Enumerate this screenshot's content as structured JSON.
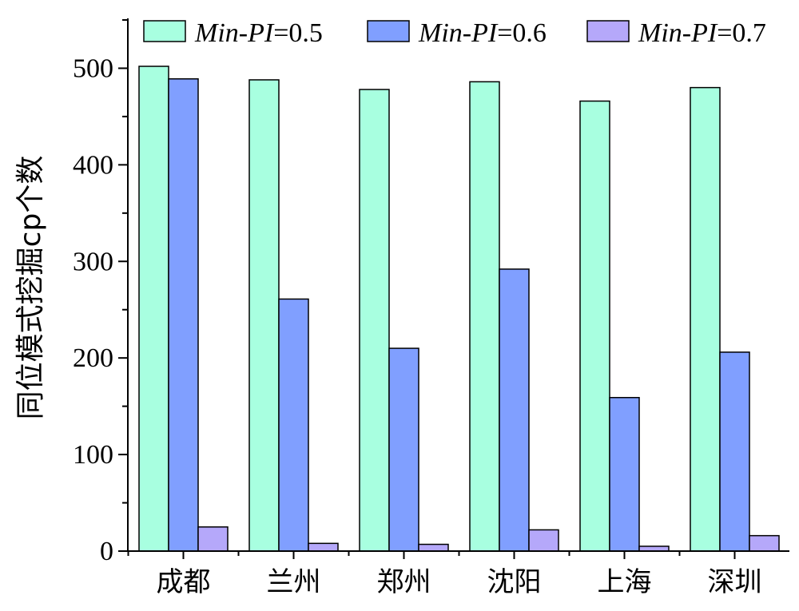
{
  "chart_data": {
    "type": "bar",
    "title": "",
    "xlabel": "",
    "ylabel": "同位模式挖掘cp个数",
    "ylim": [
      0,
      550
    ],
    "yticks": [
      0,
      100,
      200,
      300,
      400,
      500
    ],
    "categories": [
      "成都",
      "兰州",
      "郑州",
      "沈阳",
      "上海",
      "深圳"
    ],
    "legend_position": "top",
    "grid": false,
    "series": [
      {
        "name": "Min-PI=0.5",
        "name_italic": "Min-PI",
        "name_suffix": "=0.5",
        "color": "#A8FFE0",
        "values": [
          502,
          488,
          478,
          486,
          466,
          480
        ]
      },
      {
        "name": "Min-PI=0.6",
        "name_italic": "Min-PI",
        "name_suffix": "=0.6",
        "color": "#809FFF",
        "values": [
          489,
          261,
          210,
          292,
          159,
          206
        ]
      },
      {
        "name": "Min-PI=0.7",
        "name_italic": "Min-PI",
        "name_suffix": "=0.7",
        "color": "#B5A8FA",
        "values": [
          25,
          8,
          7,
          22,
          5,
          16
        ]
      }
    ]
  }
}
